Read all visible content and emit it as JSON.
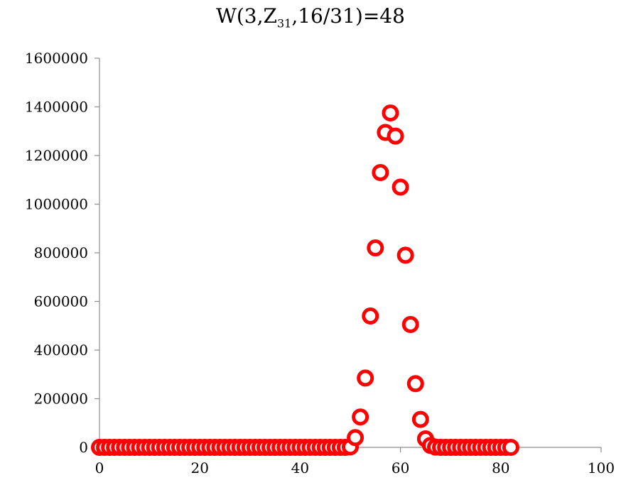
{
  "chart_data": {
    "type": "scatter",
    "title": {
      "prefix": "W(3,Z",
      "subscript": "31",
      "suffix": ",16/31)=48"
    },
    "xlabel": "",
    "ylabel": "",
    "xlim": [
      0,
      100
    ],
    "ylim": [
      0,
      1600000
    ],
    "xticks": [
      "0",
      "20",
      "40",
      "60",
      "80",
      "100"
    ],
    "yticks": [
      "0",
      "200000",
      "400000",
      "600000",
      "800000",
      "1000000",
      "1200000",
      "1400000",
      "1600000"
    ],
    "grid": false,
    "legend": "none",
    "marker": "hollow-circle",
    "color": "#ff0000",
    "points": [
      [
        0,
        0
      ],
      [
        1,
        0
      ],
      [
        2,
        0
      ],
      [
        3,
        0
      ],
      [
        4,
        0
      ],
      [
        5,
        0
      ],
      [
        6,
        0
      ],
      [
        7,
        0
      ],
      [
        8,
        0
      ],
      [
        9,
        0
      ],
      [
        10,
        0
      ],
      [
        11,
        0
      ],
      [
        12,
        0
      ],
      [
        13,
        0
      ],
      [
        14,
        0
      ],
      [
        15,
        0
      ],
      [
        16,
        0
      ],
      [
        17,
        0
      ],
      [
        18,
        0
      ],
      [
        19,
        0
      ],
      [
        20,
        0
      ],
      [
        21,
        0
      ],
      [
        22,
        0
      ],
      [
        23,
        0
      ],
      [
        24,
        0
      ],
      [
        25,
        0
      ],
      [
        26,
        0
      ],
      [
        27,
        0
      ],
      [
        28,
        0
      ],
      [
        29,
        0
      ],
      [
        30,
        0
      ],
      [
        31,
        0
      ],
      [
        32,
        0
      ],
      [
        33,
        0
      ],
      [
        34,
        0
      ],
      [
        35,
        0
      ],
      [
        36,
        0
      ],
      [
        37,
        0
      ],
      [
        38,
        0
      ],
      [
        39,
        0
      ],
      [
        40,
        0
      ],
      [
        41,
        0
      ],
      [
        42,
        0
      ],
      [
        43,
        0
      ],
      [
        44,
        0
      ],
      [
        45,
        0
      ],
      [
        46,
        0
      ],
      [
        47,
        0
      ],
      [
        48,
        0
      ],
      [
        49,
        0
      ],
      [
        50,
        2000
      ],
      [
        51,
        40000
      ],
      [
        52,
        125000
      ],
      [
        53,
        285000
      ],
      [
        54,
        540000
      ],
      [
        55,
        820000
      ],
      [
        56,
        1130000
      ],
      [
        57,
        1295000
      ],
      [
        58,
        1375000
      ],
      [
        59,
        1280000
      ],
      [
        60,
        1070000
      ],
      [
        61,
        790000
      ],
      [
        62,
        505000
      ],
      [
        63,
        262000
      ],
      [
        64,
        115000
      ],
      [
        65,
        35000
      ],
      [
        66,
        8000
      ],
      [
        67,
        1000
      ],
      [
        68,
        0
      ],
      [
        69,
        0
      ],
      [
        70,
        0
      ],
      [
        71,
        0
      ],
      [
        72,
        0
      ],
      [
        73,
        0
      ],
      [
        74,
        0
      ],
      [
        75,
        0
      ],
      [
        76,
        0
      ],
      [
        77,
        0
      ],
      [
        78,
        0
      ],
      [
        79,
        0
      ],
      [
        80,
        0
      ],
      [
        81,
        0
      ],
      [
        82,
        0
      ]
    ]
  }
}
